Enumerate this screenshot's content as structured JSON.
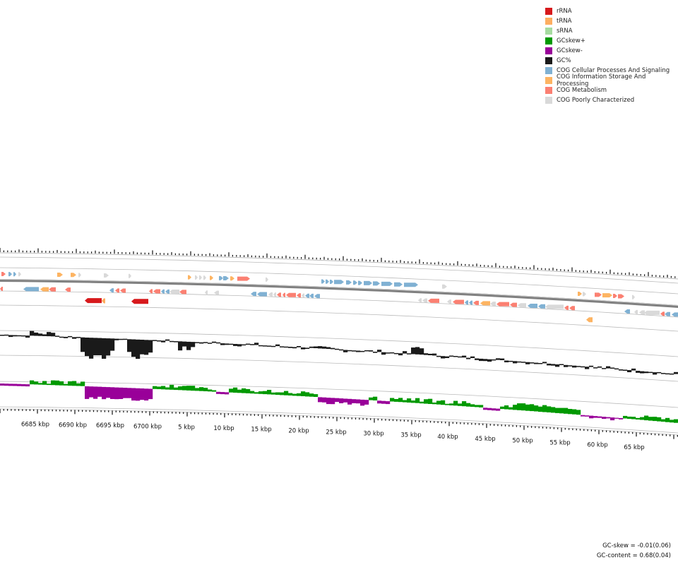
{
  "legend": {
    "items": [
      {
        "label": "rRNA",
        "color": "#d7191c"
      },
      {
        "label": "tRNA",
        "color": "#fdae61"
      },
      {
        "label": "sRNA",
        "color": "#a6dba0"
      },
      {
        "label": "GCskew+",
        "color": "#009900"
      },
      {
        "label": "GCskew-",
        "color": "#990099"
      },
      {
        "label": "GC%",
        "color": "#1a1a1a"
      },
      {
        "label": "COG Cellular Processes And Signaling",
        "color": "#80b1d3"
      },
      {
        "label": "COG Information Storage And Processing",
        "color": "#fdb462"
      },
      {
        "label": "COG Metabolism",
        "color": "#fb8072"
      },
      {
        "label": "COG Poorly Characterized",
        "color": "#d9d9d9"
      }
    ]
  },
  "axis": {
    "unit": "kbp",
    "labels": [
      "6685 kbp",
      "6690 kbp",
      "6695 kbp",
      "6700 kbp",
      "5 kbp",
      "10 kbp",
      "15 kbp",
      "20 kbp",
      "25 kbp",
      "30 kbp",
      "35 kbp",
      "40 kbp",
      "45 kbp",
      "50 kbp",
      "55 kbp",
      "60 kbp",
      "65 kbp"
    ]
  },
  "stats": {
    "gc_skew": "GC-skew = -0.01(0.06)",
    "gc_content": "GC-content = 0.68(0.04)"
  },
  "colors": {
    "ring_line": "#bbbbbb",
    "backbone": "#808080",
    "tick": "#111111",
    "gc": "#1a1a1a",
    "skew_pos": "#009900",
    "skew_neg": "#990099"
  }
}
